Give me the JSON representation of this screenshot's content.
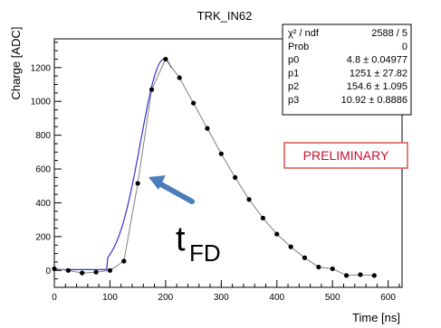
{
  "chart_data": {
    "type": "scatter",
    "title": "TRK_IN62",
    "xlabel": "Time [ns]",
    "ylabel": "Charge [ADC]",
    "xlim": [
      0,
      625
    ],
    "ylim": [
      -100,
      1370
    ],
    "x_ticks": [
      0,
      100,
      200,
      300,
      400,
      500,
      600
    ],
    "y_ticks": [
      0,
      200,
      400,
      600,
      800,
      1000,
      1200
    ],
    "series": [
      {
        "points": [
          [
            0,
            10
          ],
          [
            25,
            0
          ],
          [
            50,
            -15
          ],
          [
            75,
            -10
          ],
          [
            100,
            0
          ],
          [
            125,
            55
          ],
          [
            150,
            515
          ],
          [
            175,
            1070
          ],
          [
            200,
            1250
          ],
          [
            225,
            1140
          ],
          [
            250,
            990
          ],
          [
            275,
            840
          ],
          [
            300,
            690
          ],
          [
            325,
            550
          ],
          [
            350,
            420
          ],
          [
            375,
            310
          ],
          [
            400,
            215
          ],
          [
            425,
            140
          ],
          [
            450,
            75
          ],
          [
            475,
            20
          ],
          [
            500,
            10
          ],
          [
            525,
            -30
          ],
          [
            550,
            -25
          ],
          [
            575,
            -30
          ]
        ],
        "marker_color": "#000000",
        "line_color": "#808080"
      }
    ],
    "fit": {
      "color": "#3333cc",
      "x_range": [
        0,
        210
      ],
      "p0": 4.8,
      "p1": 1251,
      "p2": 154.6,
      "p3": 10.92
    },
    "stats": [
      {
        "label": "χ² / ndf",
        "value": "2588 / 5"
      },
      {
        "label": "Prob",
        "value": "0"
      },
      {
        "label": "p0",
        "value": "4.8 ± 0.04977"
      },
      {
        "label": "p1",
        "value": "1251 ± 27.82"
      },
      {
        "label": "p2",
        "value": "154.6 ± 1.095"
      },
      {
        "label": "p3",
        "value": "10.92 ± 0.8886"
      }
    ],
    "annotations": {
      "preliminary": "PRELIMINARY",
      "preliminary_color": "#c8102e",
      "arrow_color": "#4a7ebb",
      "tfd_main": "t",
      "tfd_sub": "FD"
    }
  }
}
